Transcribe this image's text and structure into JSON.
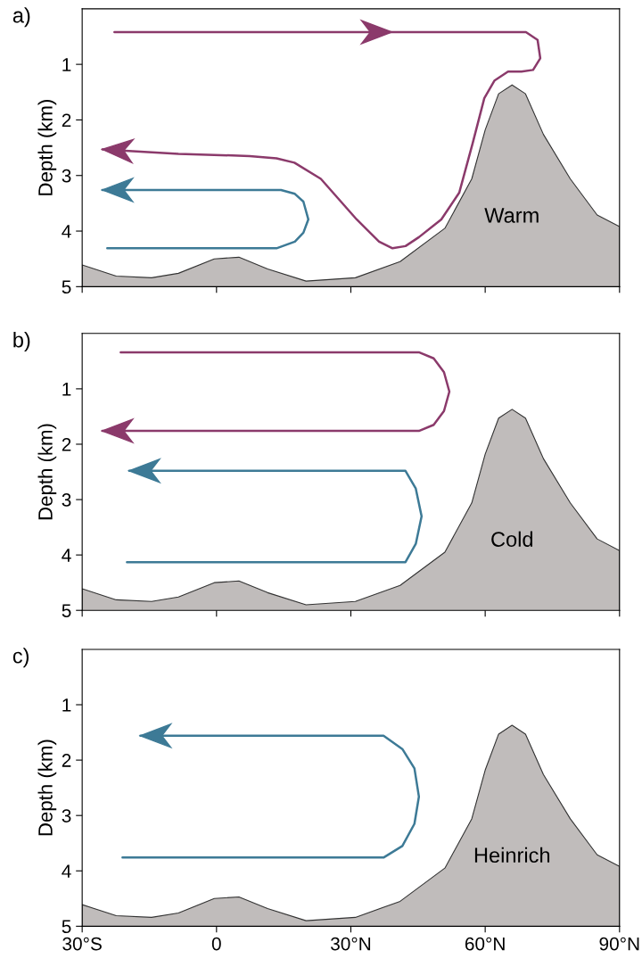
{
  "chart_data": [
    {
      "type": "line",
      "title": "a)",
      "ylabel": "Depth (km)",
      "xlim": [
        -30,
        90
      ],
      "xticks": [
        {
          "value": -30,
          "label": null
        },
        {
          "value": 0,
          "label": null
        },
        {
          "value": 30,
          "label": null
        },
        {
          "value": 60,
          "label": null
        },
        {
          "value": 90,
          "label": null
        }
      ],
      "ylim": [
        5,
        0
      ],
      "yticks": [
        1,
        2,
        3,
        4,
        5
      ],
      "tick_labels": "y",
      "annotations": [
        "Warm"
      ],
      "series": [
        {
          "type": "area",
          "color": "#c0bcbb",
          "x": [
            -30,
            -30,
            -22.4,
            -14.5,
            -8.5,
            -0.5,
            5,
            11.4,
            20,
            31,
            41,
            51,
            57,
            60,
            63,
            66,
            69,
            73,
            79,
            85,
            90,
            90
          ],
          "values": [
            5,
            4.61,
            4.81,
            4.84,
            4.76,
            4.5,
            4.47,
            4.68,
            4.9,
            4.84,
            4.55,
            3.95,
            3.06,
            2.18,
            1.53,
            1.37,
            1.53,
            2.26,
            3.06,
            3.71,
            3.92,
            5
          ]
        },
        {
          "color": "#8b3a6b",
          "x": [
            -22.8,
            69.1,
            71.7,
            72.3,
            70.7,
            68.1,
            65.1,
            62.1,
            59.8,
            57.2,
            54.2,
            50.2,
            45.2,
            42.2,
            39.3,
            36.3,
            31.3,
            23.3,
            17.4,
            13.4,
            7.4,
            -8.5,
            -25.5
          ],
          "values": [
            0.42,
            0.42,
            0.56,
            0.89,
            1.1,
            1.13,
            1.13,
            1.29,
            1.61,
            2.42,
            3.31,
            3.79,
            4.11,
            4.27,
            4.31,
            4.19,
            3.79,
            3.06,
            2.77,
            2.69,
            2.65,
            2.61,
            2.53
          ]
        },
        {
          "color": "#3d7a96",
          "x": [
            -24.4,
            13.4,
            17.5,
            19.4,
            20.5,
            19.4,
            17.5,
            14.4,
            -25.5
          ],
          "values": [
            4.31,
            4.31,
            4.19,
            4.03,
            3.79,
            3.47,
            3.33,
            3.26,
            3.26
          ]
        }
      ]
    },
    {
      "type": "line",
      "title": "b)",
      "ylabel": "Depth (km)",
      "xlim": [
        -30,
        90
      ],
      "xticks": [
        {
          "value": -30,
          "label": null
        },
        {
          "value": 0,
          "label": null
        },
        {
          "value": 30,
          "label": null
        },
        {
          "value": 60,
          "label": null
        },
        {
          "value": 90,
          "label": null
        }
      ],
      "ylim": [
        5,
        0
      ],
      "yticks": [
        1,
        2,
        3,
        4,
        5
      ],
      "tick_labels": "y",
      "annotations": [
        "Cold"
      ],
      "series": [
        {
          "type": "area",
          "color": "#c0bcbb",
          "x": [
            -30,
            -30,
            -22.4,
            -14.5,
            -8.5,
            -0.5,
            5,
            11.4,
            20,
            31,
            41,
            51,
            57,
            60,
            63,
            66,
            69,
            73,
            79,
            85,
            90,
            90
          ],
          "values": [
            5,
            4.61,
            4.81,
            4.84,
            4.76,
            4.5,
            4.47,
            4.68,
            4.9,
            4.84,
            4.55,
            3.95,
            3.06,
            2.18,
            1.53,
            1.37,
            1.53,
            2.26,
            3.06,
            3.71,
            3.92,
            5
          ]
        },
        {
          "color": "#8b3a6b",
          "x": [
            -21.4,
            45.2,
            48.5,
            50.8,
            52,
            50.8,
            48.5,
            45.2,
            -25.5
          ],
          "values": [
            0.34,
            0.34,
            0.45,
            0.7,
            1.05,
            1.4,
            1.65,
            1.76,
            1.76
          ]
        },
        {
          "color": "#3d7a96",
          "x": [
            -20,
            42.2,
            44.5,
            45.8,
            44.5,
            42.2,
            -19.5
          ],
          "values": [
            4.13,
            4.13,
            3.8,
            3.3,
            2.8,
            2.48,
            2.48
          ]
        }
      ]
    },
    {
      "type": "line",
      "title": "c)",
      "ylabel": "Depth (km)",
      "xlim": [
        -30,
        90
      ],
      "xticks": [
        {
          "value": -30,
          "label": "30°S"
        },
        {
          "value": 0,
          "label": "0"
        },
        {
          "value": 30,
          "label": "30°N"
        },
        {
          "value": 60,
          "label": "60°N"
        },
        {
          "value": 90,
          "label": "90°N"
        }
      ],
      "ylim": [
        5,
        0
      ],
      "yticks": [
        1,
        2,
        3,
        4,
        5
      ],
      "annotations": [
        "Heinrich"
      ],
      "series": [
        {
          "type": "area",
          "color": "#c0bcbb",
          "x": [
            -30,
            -30,
            -22.4,
            -14.5,
            -8.5,
            -0.5,
            5,
            11.4,
            20,
            31,
            41,
            51,
            57,
            60,
            63,
            66,
            69,
            73,
            79,
            85,
            90,
            90
          ],
          "values": [
            5,
            4.61,
            4.81,
            4.84,
            4.76,
            4.5,
            4.47,
            4.68,
            4.9,
            4.84,
            4.55,
            3.95,
            3.06,
            2.18,
            1.53,
            1.37,
            1.53,
            2.26,
            3.06,
            3.71,
            3.92,
            5
          ]
        },
        {
          "color": "#3d7a96",
          "x": [
            -21,
            37.3,
            41.5,
            44.2,
            45.2,
            44.2,
            41.5,
            37.3,
            -17
          ],
          "values": [
            3.76,
            3.76,
            3.55,
            3.15,
            2.66,
            2.15,
            1.8,
            1.56,
            1.56
          ]
        }
      ]
    }
  ]
}
